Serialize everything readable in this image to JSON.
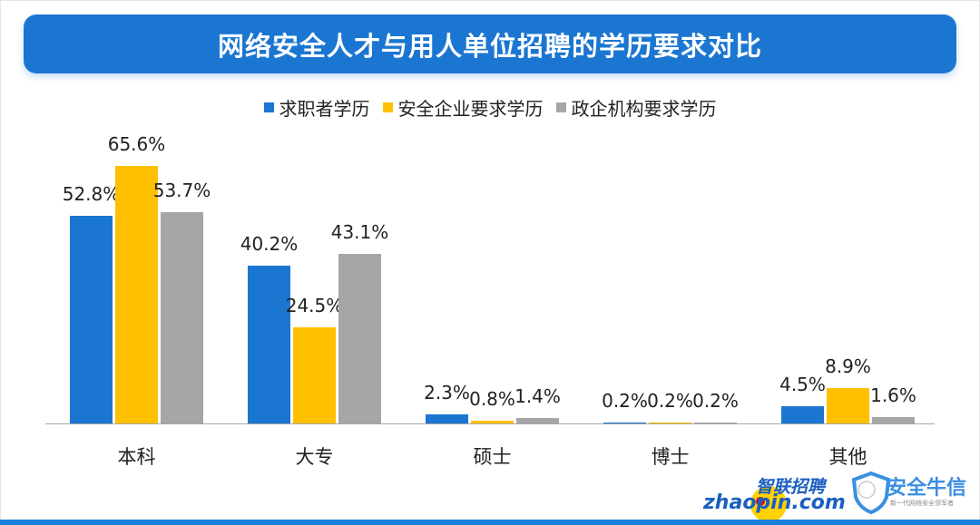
{
  "title": "网络安全人才与用人单位招聘的学历要求对比",
  "legend": [
    {
      "label": "求职者学历",
      "color": "#1b76d2"
    },
    {
      "label": "安全企业要求学历",
      "color": "#ffc000"
    },
    {
      "label": "政企机构要求学历",
      "color": "#a6a6a6"
    }
  ],
  "categories": [
    "本科",
    "大专",
    "硕士",
    "博士",
    "其他"
  ],
  "value_labels": {
    "s0": [
      "52.8%",
      "40.2%",
      "2.3%",
      "0.2%",
      "4.5%"
    ],
    "s1": [
      "65.6%",
      "24.5%",
      "0.8%",
      "0.2%",
      "8.9%"
    ],
    "s2": [
      "53.7%",
      "43.1%",
      "1.4%",
      "0.2%",
      "1.6%"
    ]
  },
  "logos": {
    "zhaopin_cn": "智联招聘",
    "zhaopin_en": "zhaopin.com",
    "anxin_cn": "安全牛信",
    "anxin_sub": "新一代网络安全领军者"
  },
  "chart_data": {
    "type": "bar",
    "title": "网络安全人才与用人单位招聘的学历要求对比",
    "categories": [
      "本科",
      "大专",
      "硕士",
      "博士",
      "其他"
    ],
    "series": [
      {
        "name": "求职者学历",
        "color": "#1b76d2",
        "values": [
          52.8,
          40.2,
          2.3,
          0.2,
          4.5
        ]
      },
      {
        "name": "安全企业要求学历",
        "color": "#ffc000",
        "values": [
          65.6,
          24.5,
          0.8,
          0.2,
          8.9
        ]
      },
      {
        "name": "政企机构要求学历",
        "color": "#a6a6a6",
        "values": [
          53.7,
          43.1,
          1.4,
          0.2,
          1.6
        ]
      }
    ],
    "xlabel": "",
    "ylabel": "",
    "unit": "%",
    "ylim": [
      0,
      70
    ],
    "grid": false,
    "legend_position": "top"
  }
}
